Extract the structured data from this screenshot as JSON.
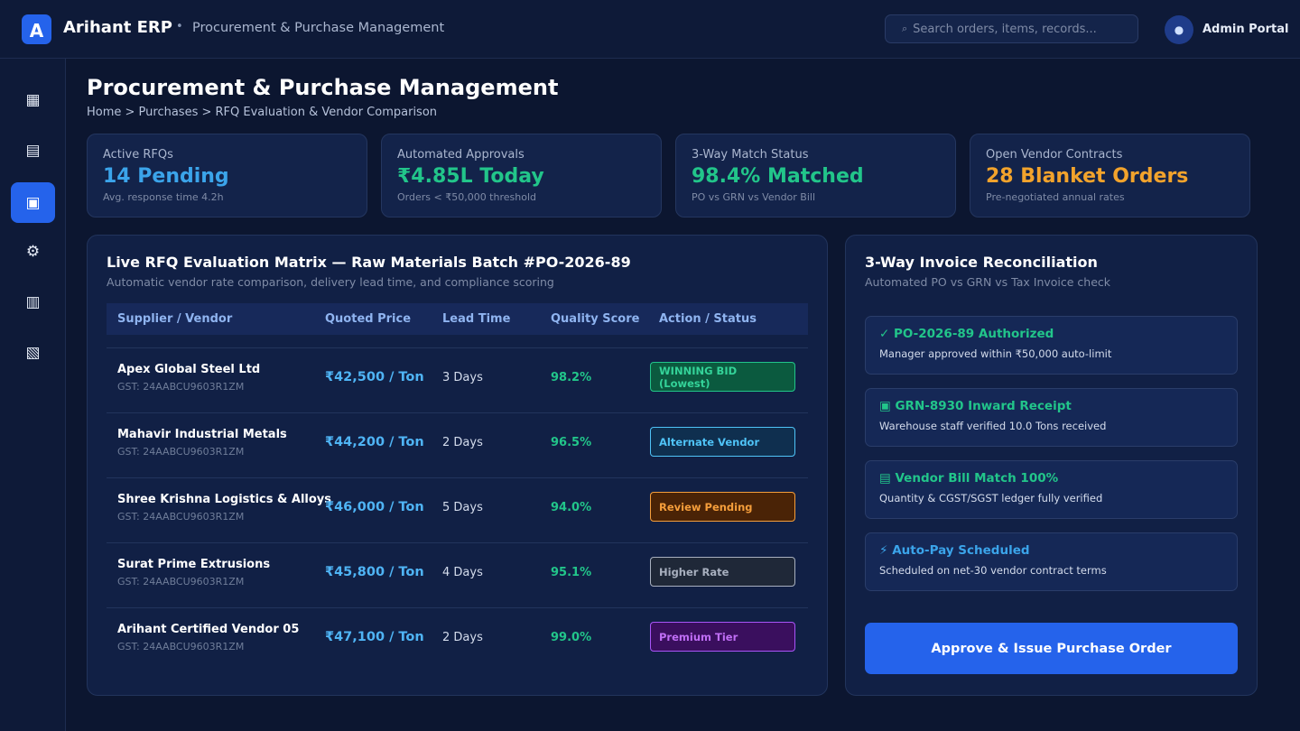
{
  "topbar": {
    "logo_letter": "A",
    "app_name": "Arihant ERP",
    "separator": "•",
    "module": "Procurement & Purchase Management",
    "search_icon": "search-icon",
    "search_placeholder": "Search orders, items, records...",
    "admin_icon": "user-icon",
    "admin_label": "Admin Portal"
  },
  "sidebar": {
    "items": [
      {
        "icon": "dashboard-icon",
        "glyph": "▦",
        "active": false
      },
      {
        "icon": "cart-icon",
        "glyph": "▤",
        "active": false
      },
      {
        "icon": "clipboard-icon",
        "glyph": "▣",
        "active": true
      },
      {
        "icon": "gear-icon",
        "glyph": "⚙",
        "active": false
      },
      {
        "icon": "chart-icon",
        "glyph": "▥",
        "active": false
      },
      {
        "icon": "document-icon",
        "glyph": "▧",
        "active": false
      }
    ]
  },
  "page": {
    "title": "Procurement & Purchase Management",
    "breadcrumb": "Home > Purchases > RFQ Evaluation & Vendor Comparison"
  },
  "kpis": [
    {
      "label": "Active RFQs",
      "value": "14 Pending",
      "sub": "Avg. response time 4.2h",
      "color": "#3ba4ea"
    },
    {
      "label": "Automated Approvals",
      "value": "₹4.85L Today",
      "sub": "Orders < ₹50,000 threshold",
      "color": "#22c58a"
    },
    {
      "label": "3-Way Match Status",
      "value": "98.4% Matched",
      "sub": "PO vs GRN vs Vendor Bill",
      "color": "#22c58a"
    },
    {
      "label": "Open Vendor Contracts",
      "value": "28 Blanket Orders",
      "sub": "Pre-negotiated annual rates",
      "color": "#f2a32c"
    }
  ],
  "rfq": {
    "title": "Live RFQ Evaluation Matrix — Raw Materials Batch #PO-2026-89",
    "subtitle": "Automatic vendor rate comparison, delivery lead time, and compliance scoring",
    "columns": [
      "Supplier / Vendor",
      "Quoted Price",
      "Lead Time",
      "Quality Score",
      "Action / Status"
    ],
    "rows": [
      {
        "vendor": "Apex Global Steel Ltd",
        "gst": "GST: 24AABCU9603R1ZM",
        "price": "₹42,500 / Ton",
        "lead": "3 Days",
        "quality": "98.2%",
        "status": "WINNING BID (Lowest)",
        "status_fg": "#34d399",
        "status_bg": "#0b5a3f",
        "status_border": "#22c58a"
      },
      {
        "vendor": "Mahavir Industrial Metals",
        "gst": "GST: 24AABCU9603R1ZM",
        "price": "₹44,200 / Ton",
        "lead": "2 Days",
        "quality": "96.5%",
        "status": "Alternate Vendor",
        "status_fg": "#4fc3f7",
        "status_bg": "#0f2f4f",
        "status_border": "#4fc3f7"
      },
      {
        "vendor": "Shree Krishna Logistics & Alloys",
        "gst": "GST: 24AABCU9603R1ZM",
        "price": "₹46,000 / Ton",
        "lead": "5 Days",
        "quality": "94.0%",
        "status": "Review Pending",
        "status_fg": "#f59e3b",
        "status_bg": "#4a2306",
        "status_border": "#f59e3b"
      },
      {
        "vendor": "Surat Prime Extrusions",
        "gst": "GST: 24AABCU9603R1ZM",
        "price": "₹45,800 / Ton",
        "lead": "4 Days",
        "quality": "95.1%",
        "status": "Higher Rate",
        "status_fg": "#a8b0bf",
        "status_bg": "#1f2838",
        "status_border": "#a8b0bf"
      },
      {
        "vendor": "Arihant Certified Vendor 05",
        "gst": "GST: 24AABCU9603R1ZM",
        "price": "₹47,100 / Ton",
        "lead": "2 Days",
        "quality": "99.0%",
        "status": "Premium Tier",
        "status_fg": "#c06ef5",
        "status_bg": "#3a0f5e",
        "status_border": "#a855f7"
      }
    ]
  },
  "recon": {
    "title": "3-Way Invoice Reconciliation",
    "subtitle": "Automated PO vs GRN vs Tax Invoice check",
    "items": [
      {
        "icon": "check-icon",
        "glyph": "✓",
        "title": "PO-2026-89 Authorized",
        "sub": "Manager approved within ₹50,000 auto-limit",
        "color": "#22c58a"
      },
      {
        "icon": "package-icon",
        "glyph": "▣",
        "title": "GRN-8930 Inward Receipt",
        "sub": "Warehouse staff verified 10.0 Tons received",
        "color": "#22c58a"
      },
      {
        "icon": "receipt-icon",
        "glyph": "▤",
        "title": "Vendor Bill Match 100%",
        "sub": "Quantity & CGST/SGST ledger fully verified",
        "color": "#22c58a"
      },
      {
        "icon": "lightning-icon",
        "glyph": "⚡",
        "title": "Auto-Pay Scheduled",
        "sub": "Scheduled on net-30 vendor contract terms",
        "color": "#3ba4ea"
      }
    ],
    "button": "Approve & Issue Purchase Order"
  }
}
